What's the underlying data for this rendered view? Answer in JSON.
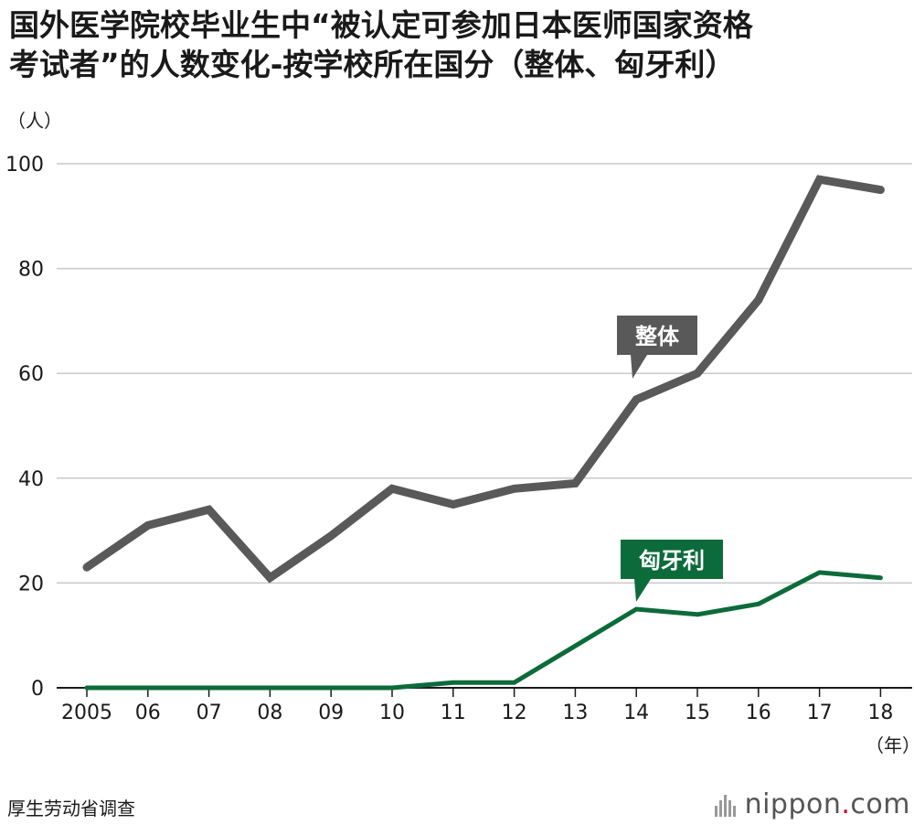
{
  "title_line1": "国外医学院校毕业生中“被认定可参加日本医师国家资格",
  "title_line2": "考试者”的人数变化-按学校所在国分（整体、匈牙利）",
  "source": "厚生劳动省调查",
  "brand": {
    "prefix": "nippon",
    "dot": ".",
    "suffix": "com",
    "icon": "nippon-logo-bars-icon"
  },
  "colors": {
    "series_total": "#595959",
    "series_hungary": "#0b6b3a",
    "grid": "#c8c8c8",
    "axis": "#1a1a1a"
  },
  "chart_data": {
    "type": "line",
    "categories": [
      "2005",
      "06",
      "07",
      "08",
      "09",
      "10",
      "11",
      "12",
      "13",
      "14",
      "15",
      "16",
      "17",
      "18"
    ],
    "y_unit": "（人）",
    "x_unit": "（年）",
    "ylim": [
      0,
      100
    ],
    "yticks": [
      0,
      20,
      40,
      60,
      80,
      100
    ],
    "grid": true,
    "series": [
      {
        "name": "整体",
        "values": [
          23,
          31,
          34,
          21,
          29,
          38,
          35,
          38,
          39,
          55,
          60,
          74,
          97,
          95
        ]
      },
      {
        "name": "匈牙利",
        "values": [
          0,
          0,
          0,
          0,
          0,
          0,
          1,
          1,
          8,
          15,
          14,
          16,
          22,
          21
        ]
      }
    ]
  }
}
